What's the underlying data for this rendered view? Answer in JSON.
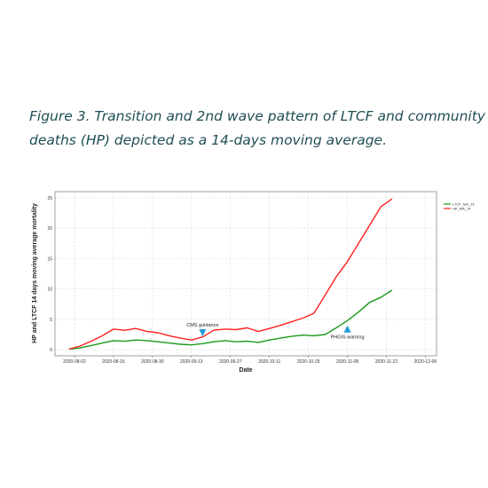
{
  "caption": {
    "line1": "Figure 3. Transition and 2nd wave pattern of LTCF and community",
    "line2": "deaths (HP) depicted as a 14-days moving average."
  },
  "colors": {
    "ltcf": "#1a9a1a",
    "hp": "#ff2020",
    "annotation": "#1e9bd7",
    "grid": "#d9d9d9"
  },
  "chart_data": {
    "type": "line",
    "title": "",
    "xlabel": "Date",
    "ylabel": "HP and LTCF 14 days moving average mortality",
    "xlim": [
      "2020-07-26",
      "2020-12-10"
    ],
    "ylim": [
      -1,
      26
    ],
    "x_ticks": [
      "2020-08-02",
      "2020-08-16",
      "2020-08-30",
      "2020-09-13",
      "2020-09-27",
      "2020-10-11",
      "2020-10-25",
      "2020-11-08",
      "2020-11-22",
      "2020-12-06"
    ],
    "y_ticks": [
      0,
      5,
      10,
      15,
      20,
      25
    ],
    "grid": true,
    "legend_position": "top-right",
    "x": [
      "2020-07-31",
      "2020-08-04",
      "2020-08-08",
      "2020-08-12",
      "2020-08-16",
      "2020-08-20",
      "2020-08-24",
      "2020-08-28",
      "2020-09-01",
      "2020-09-05",
      "2020-09-09",
      "2020-09-13",
      "2020-09-17",
      "2020-09-21",
      "2020-09-25",
      "2020-09-29",
      "2020-10-03",
      "2020-10-07",
      "2020-10-11",
      "2020-10-15",
      "2020-10-19",
      "2020-10-23",
      "2020-10-27",
      "2020-10-31",
      "2020-11-04",
      "2020-11-08",
      "2020-11-12",
      "2020-11-16",
      "2020-11-20",
      "2020-11-24"
    ],
    "series": [
      {
        "name": "LTCF_MA_14",
        "values": [
          0.1,
          0.3,
          0.7,
          1.1,
          1.5,
          1.4,
          1.6,
          1.5,
          1.3,
          1.1,
          0.9,
          0.8,
          1.0,
          1.3,
          1.5,
          1.3,
          1.4,
          1.2,
          1.6,
          1.9,
          2.2,
          2.4,
          2.3,
          2.5,
          3.6,
          4.8,
          6.2,
          7.8,
          8.6,
          9.8
        ]
      },
      {
        "name": "HP_MA_14",
        "values": [
          0.1,
          0.6,
          1.4,
          2.3,
          3.4,
          3.2,
          3.5,
          3.0,
          2.8,
          2.3,
          1.9,
          1.6,
          2.1,
          3.2,
          3.4,
          3.3,
          3.6,
          3.0,
          3.5,
          4.0,
          4.6,
          5.2,
          6.0,
          9.0,
          12.0,
          14.5,
          17.5,
          20.5,
          23.5,
          24.8
        ]
      }
    ],
    "annotations": [
      {
        "label": "CMS guidance",
        "x": "2020-09-17",
        "y": 2.2,
        "arrow": "down"
      },
      {
        "label": "PHGIS warning",
        "x": "2020-11-08",
        "y": 4.0,
        "arrow": "up"
      }
    ]
  }
}
